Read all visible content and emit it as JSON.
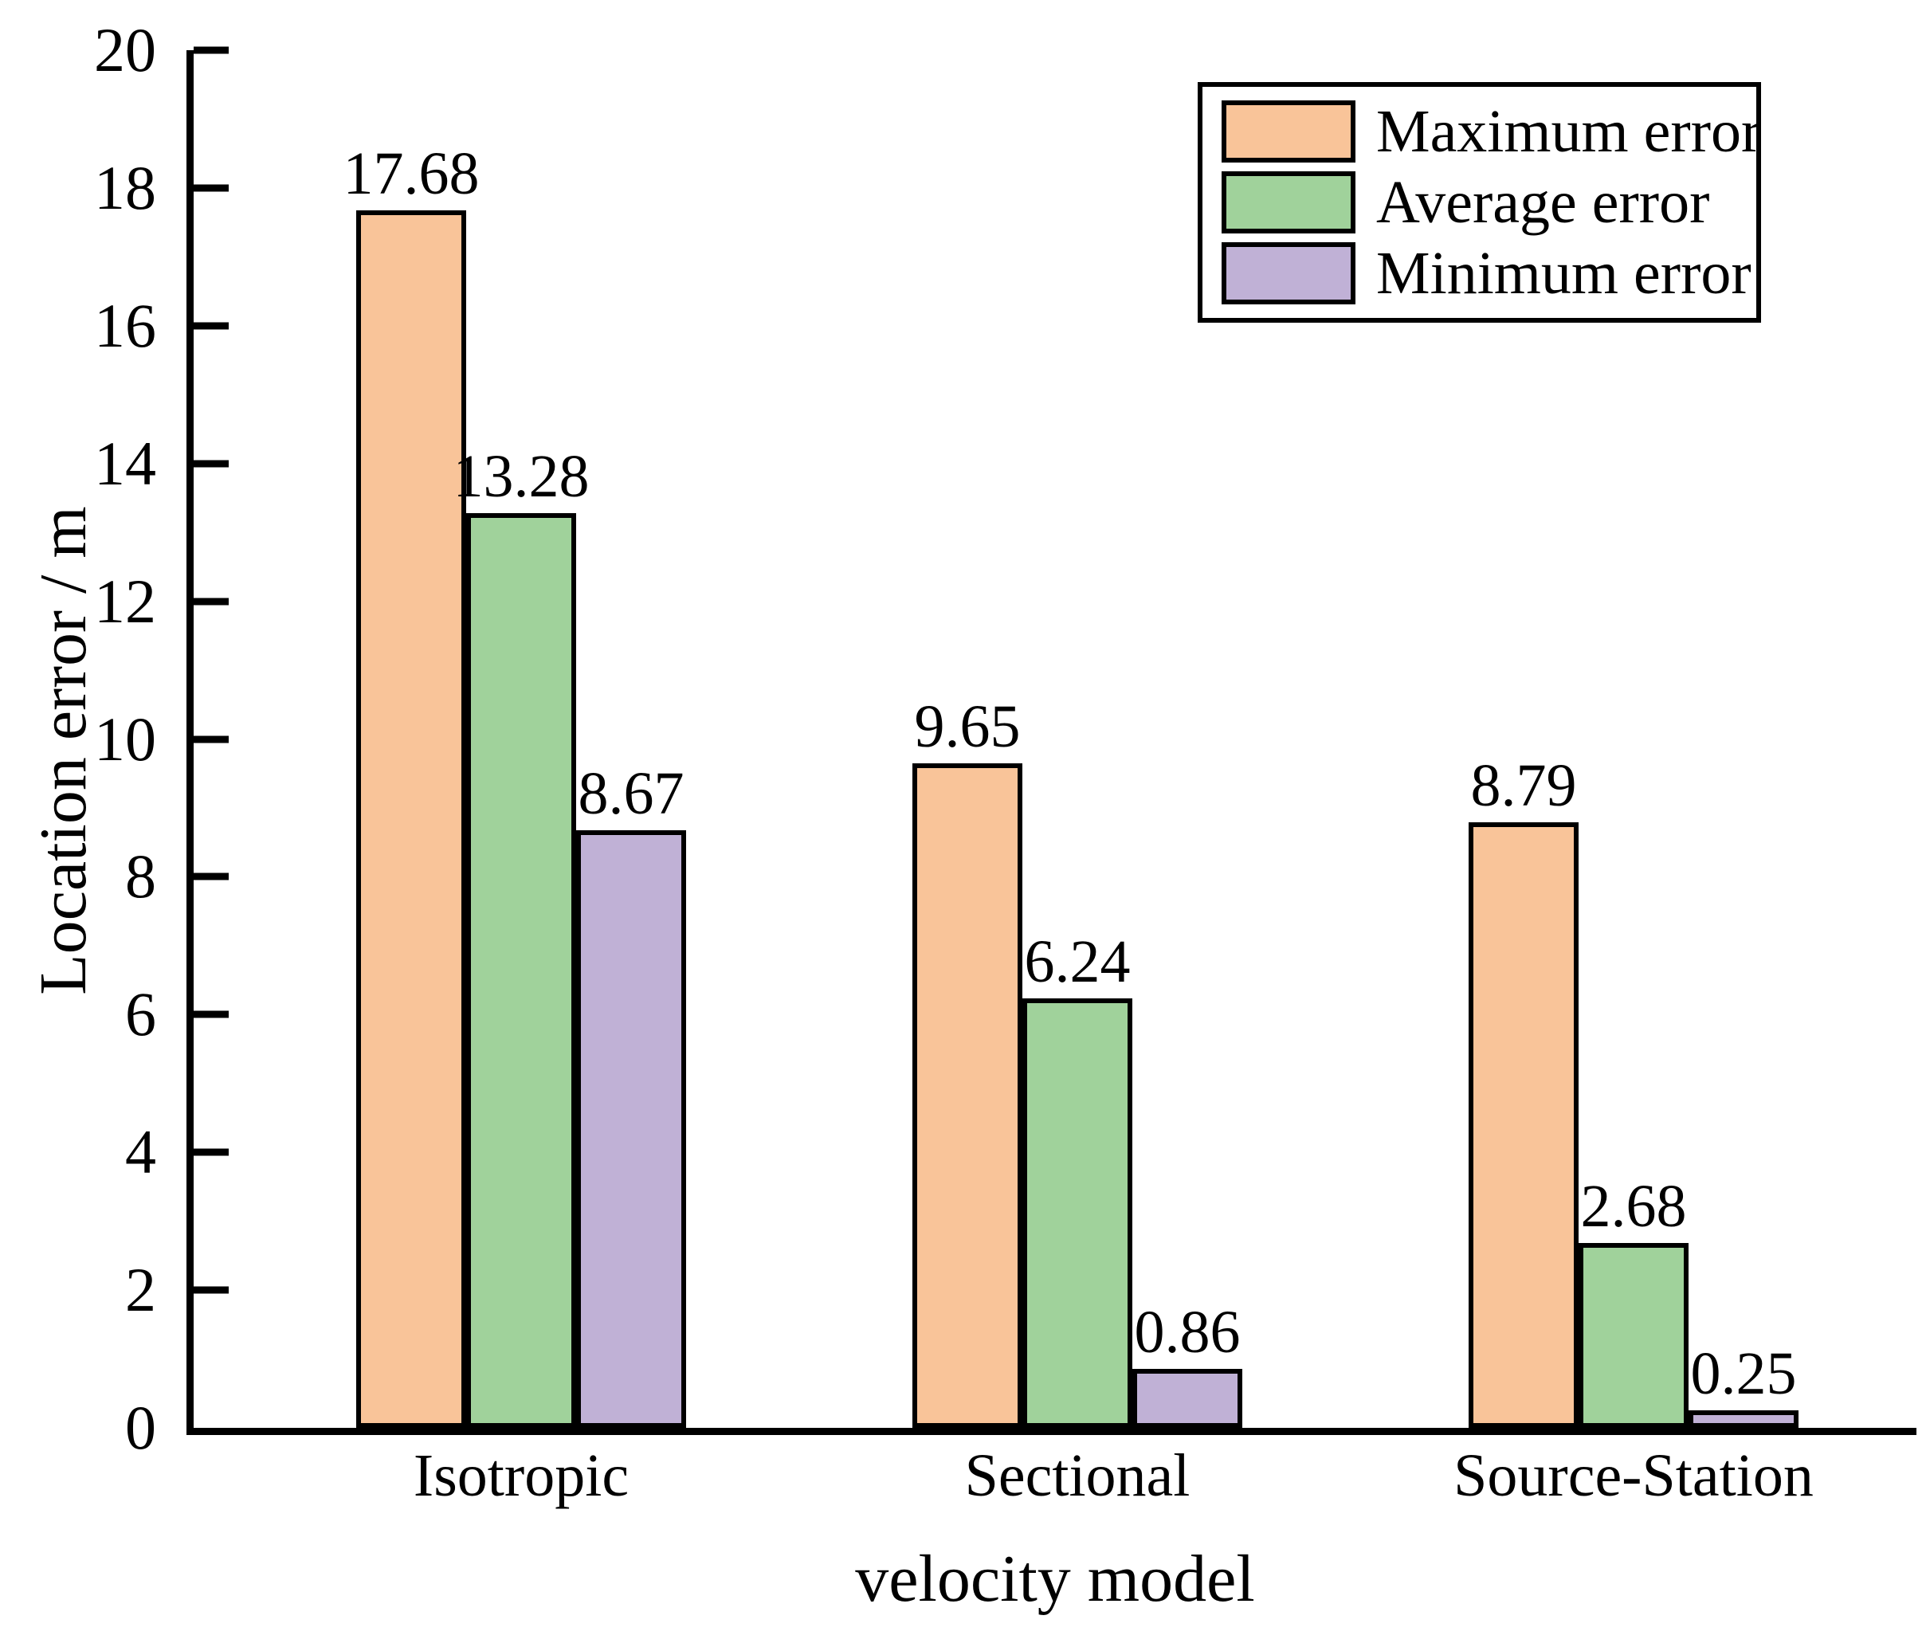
{
  "chart_data": {
    "type": "bar",
    "categories": [
      "Isotropic",
      "Sectional",
      "Source-Station"
    ],
    "series": [
      {
        "name": "Maximum error",
        "color": "#F9C499",
        "values": [
          17.68,
          9.65,
          8.79
        ]
      },
      {
        "name": "Average error",
        "color": "#A0D29B",
        "values": [
          13.28,
          6.24,
          2.68
        ]
      },
      {
        "name": "Minimum error",
        "color": "#C0B1D6",
        "values": [
          8.67,
          0.86,
          0.25
        ]
      }
    ],
    "xlabel": "velocity model",
    "ylabel": "Location error / m",
    "ylim": [
      0,
      20
    ],
    "yticks": [
      0,
      2,
      4,
      6,
      8,
      10,
      12,
      14,
      16,
      18,
      20
    ],
    "grid": false,
    "legend_position": "top-right",
    "bar_edge_color": "#000000",
    "axis_color": "#000000",
    "background_color": "#ffffff"
  }
}
